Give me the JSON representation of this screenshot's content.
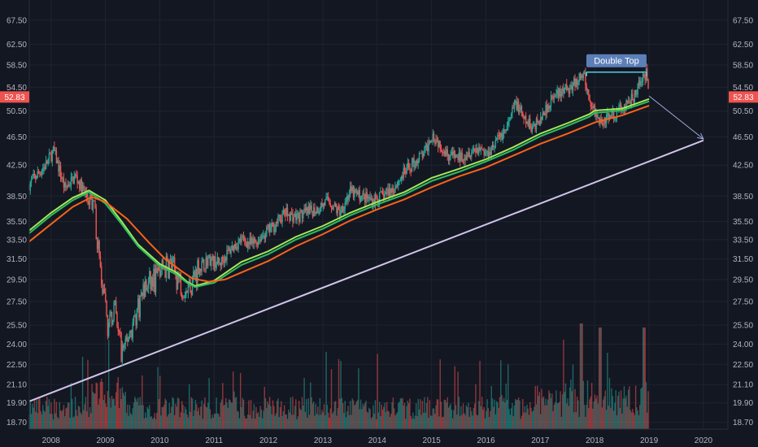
{
  "chart_data": {
    "type": "candlestick",
    "title": "",
    "xlabel": "",
    "ylabel": "",
    "y_scale": "log",
    "ylim": [
      18.3,
      72.0
    ],
    "xlim": [
      2007.6,
      2020.45
    ],
    "grid": true,
    "legend": "none",
    "y_ticks": [
      "67.50",
      "62.50",
      "58.50",
      "54.50",
      "50.50",
      "46.50",
      "42.50",
      "38.50",
      "35.50",
      "33.50",
      "31.50",
      "29.50",
      "27.50",
      "25.50",
      "24.00",
      "22.50",
      "21.10",
      "19.90",
      "18.70"
    ],
    "x_ticks": [
      "2008",
      "2009",
      "2010",
      "2011",
      "2012",
      "2013",
      "2014",
      "2015",
      "2016",
      "2017",
      "2018",
      "2019",
      "2020"
    ],
    "last_price": "52.83",
    "annotations": [
      {
        "name": "double-top",
        "text": "Double Top",
        "from": [
          2017.85,
          57.2
        ],
        "to": [
          2018.95,
          57.2
        ]
      },
      {
        "name": "support-line",
        "text": "",
        "from": [
          2007.6,
          20.0
        ],
        "to": [
          2020.0,
          46.0
        ]
      },
      {
        "name": "projection-arrow",
        "text": "",
        "from": [
          2019.0,
          53.0
        ],
        "to": [
          2020.0,
          46.2
        ]
      }
    ],
    "series": [
      {
        "name": "",
        "kind": "price",
        "x": [
          2007.6,
          2007.9,
          2008.05,
          2008.25,
          2008.45,
          2008.65,
          2008.8,
          2008.95,
          2009.05,
          2009.15,
          2009.3,
          2009.5,
          2009.7,
          2009.9,
          2010.05,
          2010.2,
          2010.35,
          2010.5,
          2010.7,
          2010.9,
          2011.1,
          2011.3,
          2011.5,
          2011.7,
          2011.9,
          2012.1,
          2012.3,
          2012.5,
          2012.7,
          2012.9,
          2013.1,
          2013.3,
          2013.5,
          2013.7,
          2013.9,
          2014.1,
          2014.3,
          2014.5,
          2014.7,
          2014.9,
          2015.0,
          2015.15,
          2015.3,
          2015.5,
          2015.7,
          2015.9,
          2016.0,
          2016.2,
          2016.4,
          2016.55,
          2016.7,
          2016.85,
          2017.0,
          2017.2,
          2017.4,
          2017.6,
          2017.8,
          2017.9,
          2018.0,
          2018.1,
          2018.3,
          2018.5,
          2018.7,
          2018.85,
          2018.95,
          2019.0
        ],
        "values": [
          40.0,
          42.5,
          44.5,
          39.5,
          41.0,
          38.5,
          36.5,
          28.0,
          25.5,
          27.0,
          23.5,
          25.5,
          28.5,
          29.5,
          30.5,
          31.0,
          29.5,
          28.5,
          30.5,
          31.5,
          31.0,
          32.5,
          33.5,
          33.0,
          34.0,
          35.0,
          36.5,
          36.0,
          36.5,
          37.0,
          38.0,
          36.5,
          39.0,
          38.5,
          38.0,
          38.5,
          39.5,
          41.5,
          43.0,
          44.5,
          47.0,
          45.5,
          44.0,
          43.5,
          44.5,
          45.0,
          44.0,
          46.0,
          48.0,
          52.0,
          49.0,
          48.0,
          49.5,
          52.5,
          53.5,
          55.0,
          56.5,
          52.5,
          50.5,
          49.0,
          49.5,
          51.0,
          52.5,
          55.5,
          57.0,
          52.83
        ]
      },
      {
        "name": "",
        "kind": "ma-fast",
        "color": "#a5e65a",
        "x": [
          2007.6,
          2008.0,
          2008.4,
          2008.7,
          2009.0,
          2009.3,
          2009.6,
          2010.0,
          2010.3,
          2010.5,
          2010.65,
          2011.0,
          2011.5,
          2012.0,
          2012.5,
          2013.0,
          2013.5,
          2014.0,
          2014.5,
          2015.0,
          2015.5,
          2016.0,
          2016.5,
          2017.0,
          2017.5,
          2017.9,
          2018.0,
          2018.5,
          2019.0
        ],
        "values": [
          34.5,
          36.5,
          38.3,
          39.2,
          38.0,
          35.5,
          33.0,
          31.0,
          30.2,
          29.3,
          28.9,
          29.4,
          31.2,
          32.3,
          33.8,
          35.0,
          36.5,
          37.8,
          39.0,
          40.8,
          42.0,
          43.3,
          45.0,
          47.0,
          48.6,
          50.0,
          50.6,
          50.9,
          52.5
        ]
      },
      {
        "name": "",
        "kind": "ma-mid",
        "color": "#2ebd5f",
        "x": [
          2007.6,
          2008.0,
          2008.4,
          2008.7,
          2009.0,
          2009.3,
          2009.6,
          2010.0,
          2010.3,
          2010.5,
          2010.65,
          2011.0,
          2011.5,
          2012.0,
          2012.5,
          2013.0,
          2013.5,
          2014.0,
          2014.5,
          2015.0,
          2015.5,
          2016.0,
          2016.5,
          2017.0,
          2017.5,
          2017.9,
          2018.0,
          2018.5,
          2019.0
        ],
        "values": [
          34.2,
          36.2,
          38.0,
          39.0,
          37.6,
          35.2,
          32.8,
          30.8,
          30.0,
          29.2,
          28.8,
          29.2,
          30.9,
          32.0,
          33.5,
          34.7,
          36.2,
          37.5,
          38.7,
          40.4,
          41.6,
          43.0,
          44.6,
          46.6,
          48.2,
          49.6,
          50.2,
          50.6,
          52.1
        ]
      },
      {
        "name": "",
        "kind": "ma-slow",
        "color": "#f7631b",
        "x": [
          2007.6,
          2008.0,
          2008.4,
          2008.75,
          2009.0,
          2009.4,
          2009.8,
          2010.1,
          2010.4,
          2010.6,
          2010.9,
          2011.2,
          2011.6,
          2012.0,
          2012.5,
          2013.0,
          2013.5,
          2014.0,
          2014.5,
          2015.0,
          2015.5,
          2016.0,
          2016.5,
          2017.0,
          2017.5,
          2018.0,
          2018.5,
          2019.0
        ],
        "values": [
          33.3,
          35.2,
          37.2,
          38.4,
          37.8,
          35.8,
          33.2,
          31.5,
          30.3,
          29.6,
          29.3,
          29.5,
          30.4,
          31.3,
          32.8,
          34.1,
          35.6,
          36.9,
          38.1,
          39.6,
          41.0,
          42.2,
          43.8,
          45.5,
          47.0,
          48.7,
          49.8,
          51.4
        ]
      }
    ]
  }
}
